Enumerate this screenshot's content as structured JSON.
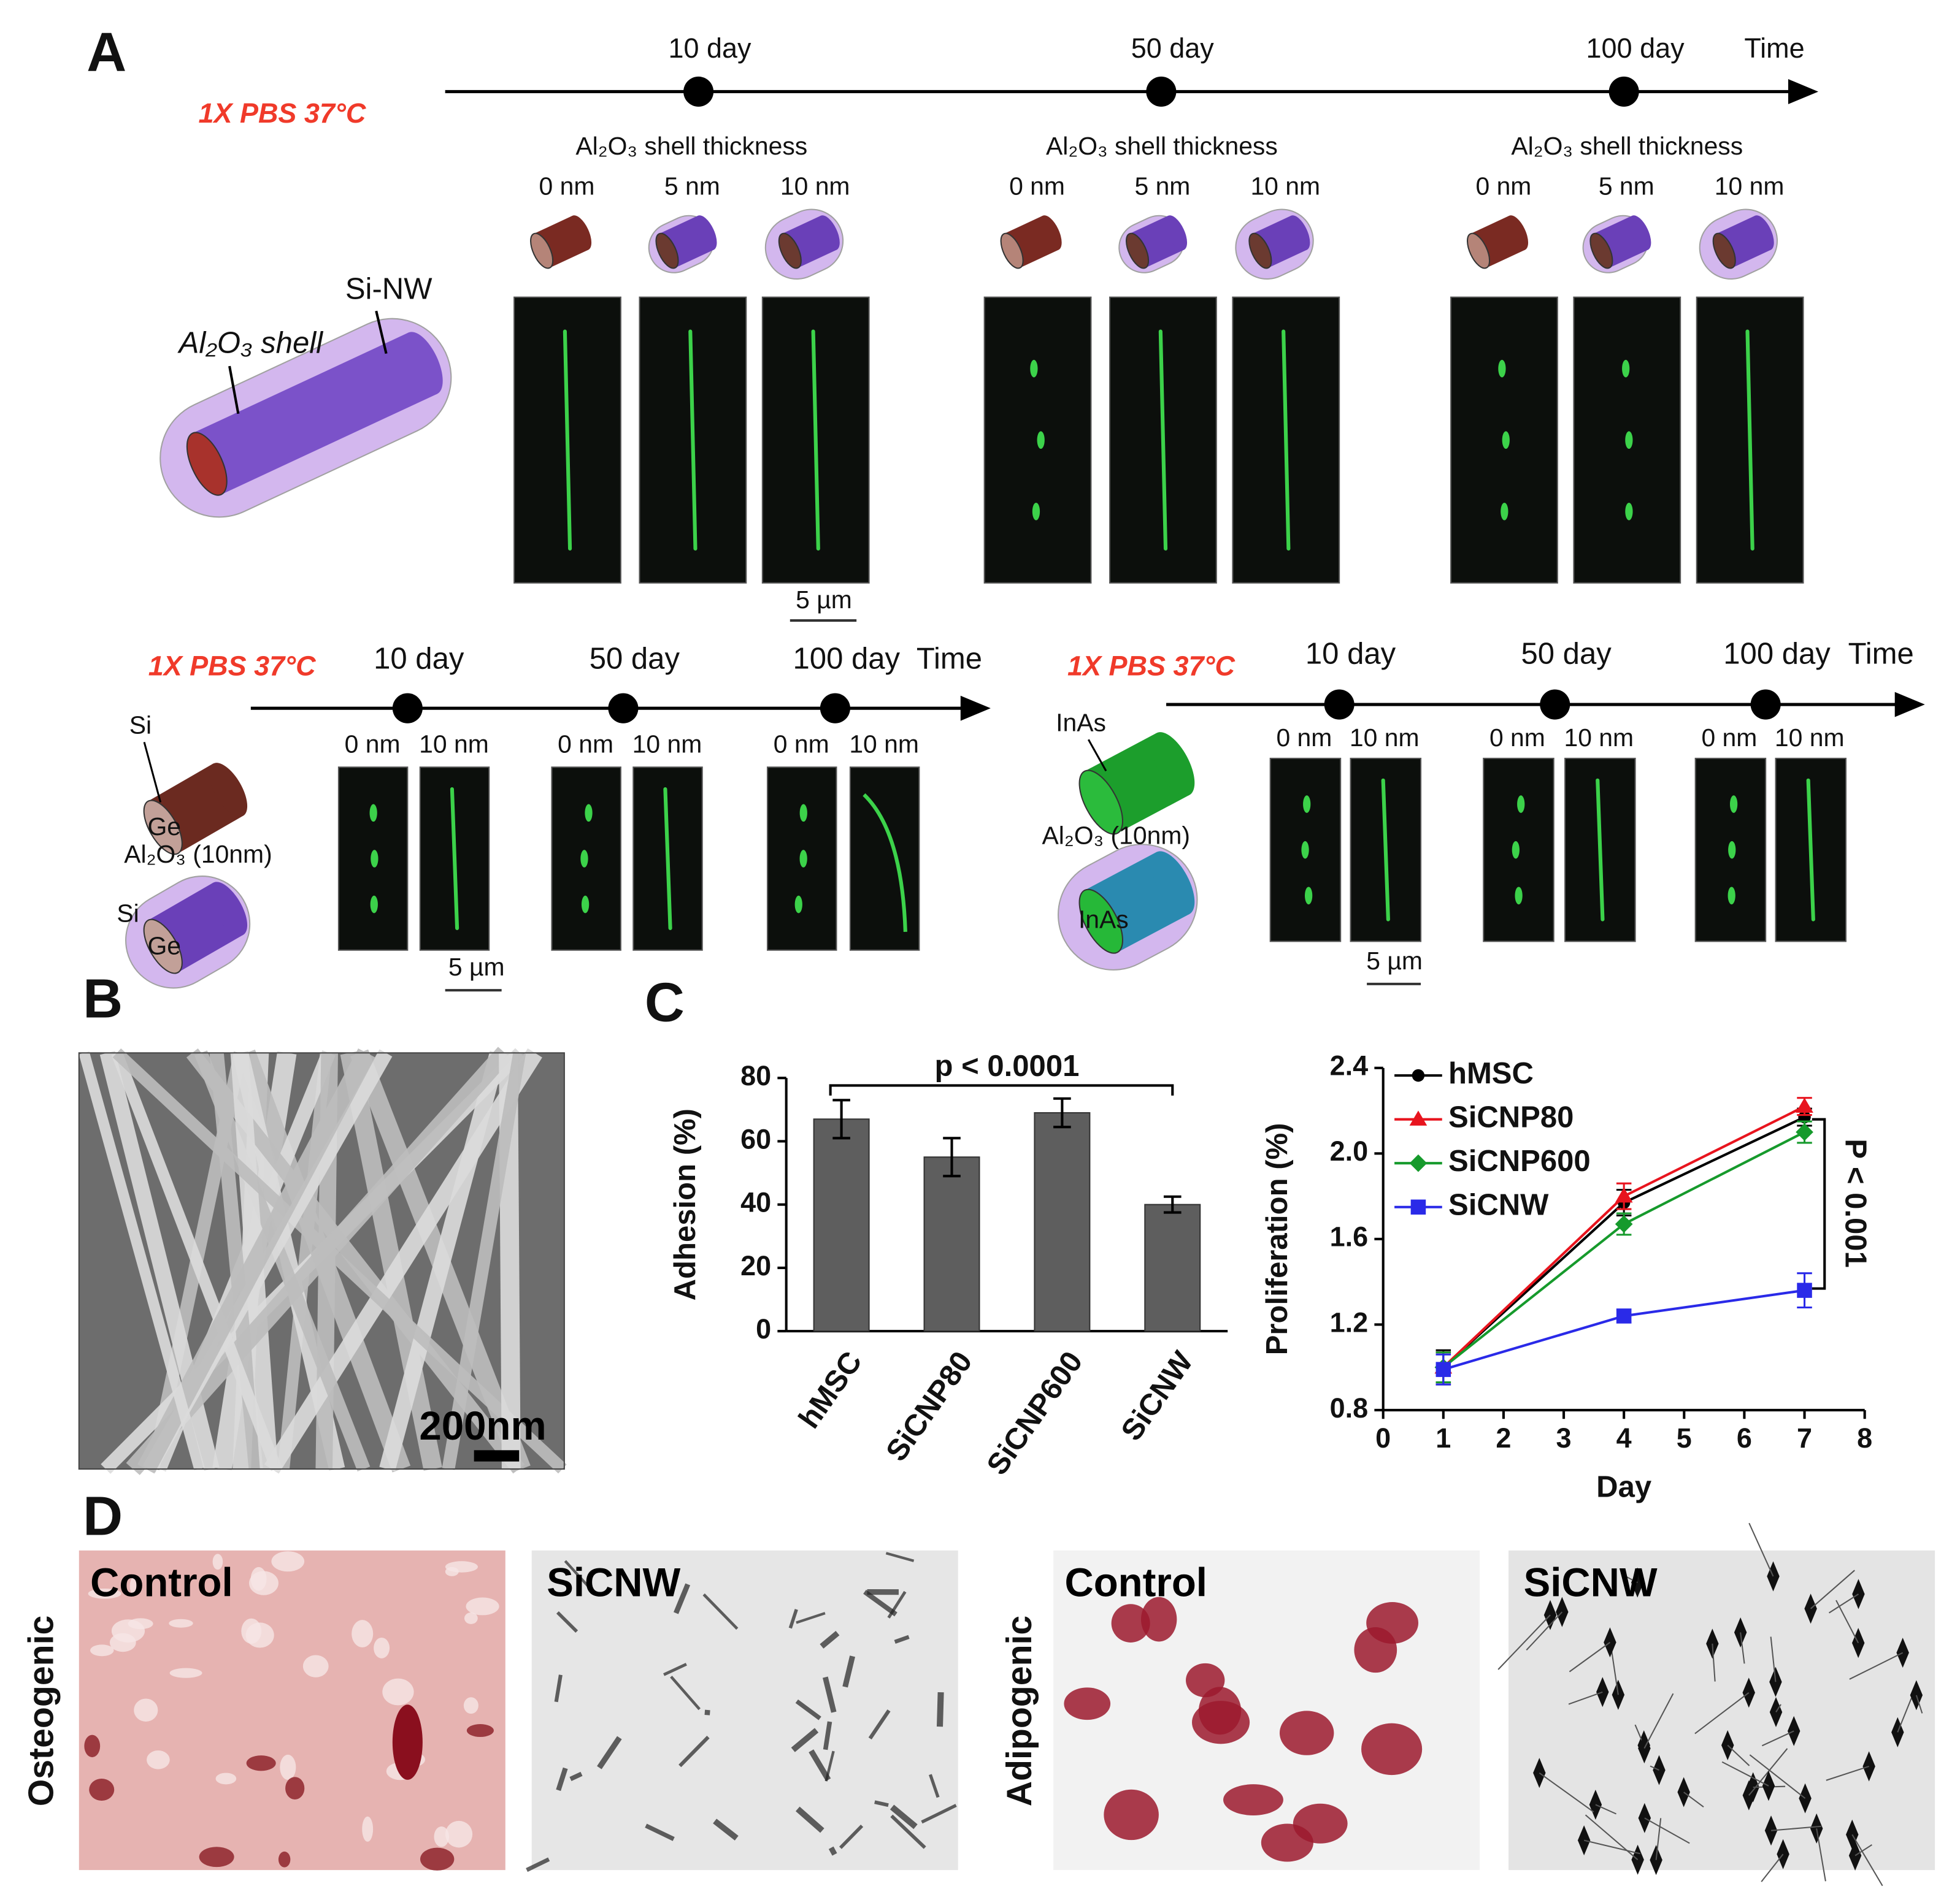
{
  "panel_labels": [
    "A",
    "B",
    "C",
    "D"
  ],
  "panel_a": {
    "top": {
      "condition": "1X PBS 37°C",
      "timepoints": [
        "10 day",
        "50 day",
        "100 day"
      ],
      "time_label": "Time",
      "shell_heading": [
        "Al₂O₃ shell thickness",
        "Al₂O₃ shell thickness",
        "Al₂O₃ shell thickness"
      ],
      "thickness": [
        [
          "0 nm",
          "5 nm",
          "10 nm"
        ],
        [
          "0 nm",
          "5 nm",
          "10 nm"
        ],
        [
          "0 nm",
          "5 nm",
          "10 nm"
        ]
      ],
      "core_label": "Si-NW",
      "shell_label": "Al₂O₃ shell",
      "scale_bar": "5 µm"
    },
    "left": {
      "condition": "1X PBS 37°C",
      "timepoints": [
        "10 day",
        "50 day",
        "100 day"
      ],
      "time_label": "Time",
      "thickness": [
        [
          "0 nm",
          "10 nm"
        ],
        [
          "0 nm",
          "10 nm"
        ],
        [
          "0 nm",
          "10 nm"
        ]
      ],
      "icon_labels": [
        "Si",
        "Ge",
        "Al₂O₃ (10nm)",
        "Si",
        "Ge"
      ],
      "scale_bar": "5 µm"
    },
    "right": {
      "condition": "1X PBS 37°C",
      "timepoints": [
        "10 day",
        "50 day",
        "100 day"
      ],
      "time_label": "Time",
      "thickness": [
        [
          "0 nm",
          "10 nm"
        ],
        [
          "0 nm",
          "10 nm"
        ],
        [
          "0 nm",
          "10 nm"
        ]
      ],
      "icon_labels": [
        "InAs",
        "Al₂O₃ (10nm)",
        "InAs"
      ],
      "scale_bar": "5 µm"
    }
  },
  "panel_b": {
    "scale_bar": "200nm"
  },
  "panel_d": {
    "rows": [
      "Osteogenic",
      "Adipogenic"
    ],
    "images": [
      "Control",
      "SiCNW",
      "Control",
      "SiCNW"
    ]
  },
  "chart_data": [
    {
      "type": "bar",
      "y_label": "Adhesion (%)",
      "categories": [
        "hMSC",
        "SiCNP80",
        "SiCNP600",
        "SiCNW"
      ],
      "values": [
        67,
        55,
        69,
        40
      ],
      "errors": [
        6,
        6,
        4.5,
        2.5
      ],
      "color": "#5e5e5e",
      "ylim": [
        0,
        80
      ],
      "yticks": [
        0,
        20,
        40,
        60,
        80
      ],
      "annotation": "p < 0.0001"
    },
    {
      "type": "line",
      "x_label": "Day",
      "y_label": "Proliferation (%)",
      "x": [
        1,
        4,
        7
      ],
      "xlim": [
        0,
        8
      ],
      "xticks": [
        0,
        1,
        2,
        3,
        4,
        5,
        6,
        7,
        8
      ],
      "ylim": [
        0.8,
        2.4
      ],
      "yticks": [
        0.8,
        1.2,
        1.6,
        {
          "value": 2,
          "label": "2.0"
        },
        2.4
      ],
      "series": [
        {
          "name": "hMSC",
          "color": "#000000",
          "values": [
            1.0,
            1.77,
            2.17
          ],
          "errors": [
            0.08,
            0.06,
            0.04
          ]
        },
        {
          "name": "SiCNP80",
          "color": "#e8141e",
          "values": [
            1.0,
            1.8,
            2.22
          ],
          "errors": [
            0.07,
            0.06,
            0.04
          ]
        },
        {
          "name": "SiCNP600",
          "color": "#169a2c",
          "values": [
            1.0,
            1.67,
            2.1
          ],
          "errors": [
            0.07,
            0.05,
            0.05
          ]
        },
        {
          "name": "SiCNW",
          "color": "#2a2ae8",
          "values": [
            0.99,
            1.24,
            1.36
          ],
          "errors": [
            0.07,
            0.03,
            0.08
          ]
        }
      ],
      "annotation": "P < 0.001"
    }
  ]
}
